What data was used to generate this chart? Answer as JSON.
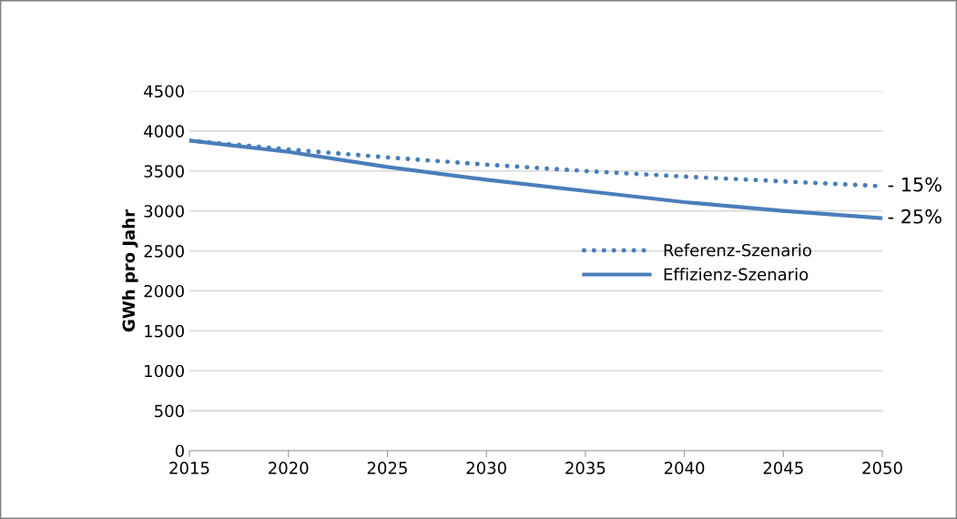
{
  "chart_data": {
    "type": "line",
    "ylabel": "GWh pro Jahr",
    "x": [
      2015,
      2020,
      2025,
      2030,
      2035,
      2040,
      2045,
      2050
    ],
    "series": [
      {
        "name": "Referenz-Szenario",
        "color": "#4a7ebb",
        "line_style": "dotted",
        "values": [
          3880,
          3770,
          3670,
          3580,
          3500,
          3430,
          3370,
          3310
        ]
      },
      {
        "name": "Effizienz-Szenario",
        "color": "#4a7ebb",
        "line_style": "solid",
        "values": [
          3880,
          3740,
          3550,
          3390,
          3250,
          3110,
          3000,
          2910
        ]
      }
    ],
    "xlim": [
      2015,
      2050
    ],
    "xticks": [
      2015,
      2020,
      2025,
      2030,
      2035,
      2040,
      2045,
      2050
    ],
    "ylim": [
      0,
      4500
    ],
    "yticks": [
      0,
      500,
      1000,
      1500,
      2000,
      2500,
      3000,
      3500,
      4000,
      4500
    ],
    "grid": "y",
    "legend": "right",
    "marker": "none",
    "annotations": [
      {
        "text": "- 15%",
        "x": 2050,
        "y": 3310
      },
      {
        "text": "- 25%",
        "x": 2050,
        "y": 2910
      }
    ]
  }
}
